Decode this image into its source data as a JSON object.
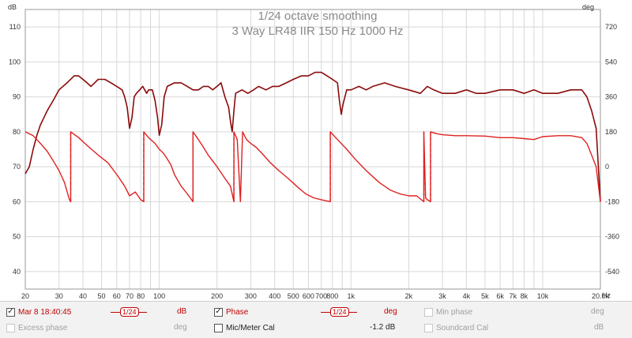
{
  "chart_data": {
    "type": "line",
    "title": "1/24 octave smoothing",
    "subtitle": "3 Way LR48 IIR 150 Hz 1000 Hz",
    "xscale": "log",
    "xlim": [
      20,
      20000
    ],
    "x_ticks": [
      {
        "v": 20,
        "label": "20"
      },
      {
        "v": 30,
        "label": "30"
      },
      {
        "v": 40,
        "label": "40"
      },
      {
        "v": 50,
        "label": "50"
      },
      {
        "v": 60,
        "label": "60"
      },
      {
        "v": 70,
        "label": "70"
      },
      {
        "v": 80,
        "label": "80"
      },
      {
        "v": 100,
        "label": "100"
      },
      {
        "v": 200,
        "label": "200"
      },
      {
        "v": 300,
        "label": "300"
      },
      {
        "v": 400,
        "label": "400"
      },
      {
        "v": 500,
        "label": "500"
      },
      {
        "v": 600,
        "label": "600"
      },
      {
        "v": 700,
        "label": "700"
      },
      {
        "v": 800,
        "label": "800"
      },
      {
        "v": 1000,
        "label": "1k"
      },
      {
        "v": 2000,
        "label": "2k"
      },
      {
        "v": 3000,
        "label": "3k"
      },
      {
        "v": 4000,
        "label": "4k"
      },
      {
        "v": 5000,
        "label": "5k"
      },
      {
        "v": 6000,
        "label": "6k"
      },
      {
        "v": 7000,
        "label": "7k"
      },
      {
        "v": 8000,
        "label": "8k"
      },
      {
        "v": 10000,
        "label": "10k"
      },
      {
        "v": 20000,
        "label": "20.0k"
      }
    ],
    "x_unit": "Hz",
    "left_axis": {
      "unit": "dB",
      "ylim": [
        35,
        115
      ],
      "ticks": [
        40,
        50,
        60,
        70,
        80,
        90,
        100,
        110
      ]
    },
    "right_axis": {
      "unit": "deg",
      "ylim": [
        -630,
        810
      ],
      "ticks": [
        -540,
        -360,
        -180,
        0,
        180,
        360,
        540,
        720
      ]
    },
    "grid": true,
    "colors": {
      "spl": "#8b0a0a",
      "phase": "#e02020",
      "grid": "#d8d8d8"
    },
    "series": [
      {
        "axis": "dB",
        "points": [
          [
            20,
            68
          ],
          [
            21,
            70
          ],
          [
            22,
            75
          ],
          [
            23,
            79
          ],
          [
            24,
            82
          ],
          [
            25,
            84
          ],
          [
            26,
            86
          ],
          [
            28,
            89
          ],
          [
            30,
            92
          ],
          [
            33,
            94
          ],
          [
            36,
            96
          ],
          [
            38,
            96
          ],
          [
            40,
            95
          ],
          [
            42,
            94
          ],
          [
            44,
            93
          ],
          [
            46,
            94
          ],
          [
            48,
            95
          ],
          [
            52,
            95
          ],
          [
            56,
            94
          ],
          [
            60,
            93
          ],
          [
            64,
            92
          ],
          [
            66,
            90
          ],
          [
            68,
            87
          ],
          [
            70,
            81
          ],
          [
            72,
            84
          ],
          [
            74,
            90
          ],
          [
            76,
            91
          ],
          [
            79,
            92
          ],
          [
            82,
            93
          ],
          [
            84,
            92
          ],
          [
            86,
            91
          ],
          [
            88,
            92
          ],
          [
            92,
            92
          ],
          [
            95,
            89
          ],
          [
            98,
            84
          ],
          [
            100,
            79
          ],
          [
            103,
            82
          ],
          [
            106,
            90
          ],
          [
            110,
            93
          ],
          [
            120,
            94
          ],
          [
            130,
            94
          ],
          [
            140,
            93
          ],
          [
            150,
            92
          ],
          [
            160,
            92
          ],
          [
            170,
            93
          ],
          [
            180,
            93
          ],
          [
            190,
            92
          ],
          [
            200,
            93
          ],
          [
            210,
            94
          ],
          [
            220,
            90
          ],
          [
            230,
            87
          ],
          [
            235,
            83
          ],
          [
            240,
            80
          ],
          [
            245,
            86
          ],
          [
            250,
            91
          ],
          [
            270,
            92
          ],
          [
            290,
            91
          ],
          [
            310,
            92
          ],
          [
            330,
            93
          ],
          [
            360,
            92
          ],
          [
            390,
            93
          ],
          [
            420,
            93
          ],
          [
            460,
            94
          ],
          [
            500,
            95
          ],
          [
            550,
            96
          ],
          [
            600,
            96
          ],
          [
            650,
            97
          ],
          [
            700,
            97
          ],
          [
            750,
            96
          ],
          [
            800,
            95
          ],
          [
            850,
            94
          ],
          [
            870,
            89
          ],
          [
            890,
            85
          ],
          [
            910,
            88
          ],
          [
            950,
            92
          ],
          [
            1000,
            92
          ],
          [
            1100,
            93
          ],
          [
            1200,
            92
          ],
          [
            1300,
            93
          ],
          [
            1500,
            94
          ],
          [
            1700,
            93
          ],
          [
            2000,
            92
          ],
          [
            2300,
            91
          ],
          [
            2500,
            93
          ],
          [
            2700,
            92
          ],
          [
            3000,
            91
          ],
          [
            3500,
            91
          ],
          [
            4000,
            92
          ],
          [
            4500,
            91
          ],
          [
            5000,
            91
          ],
          [
            6000,
            92
          ],
          [
            7000,
            92
          ],
          [
            8000,
            91
          ],
          [
            9000,
            92
          ],
          [
            10000,
            91
          ],
          [
            12000,
            91
          ],
          [
            14000,
            92
          ],
          [
            16000,
            92
          ],
          [
            17000,
            90
          ],
          [
            18000,
            86
          ],
          [
            19000,
            81
          ],
          [
            20000,
            60
          ]
        ]
      },
      {
        "axis": "deg",
        "points": [
          [
            20,
            180
          ],
          [
            22,
            160
          ],
          [
            24,
            120
          ],
          [
            26,
            80
          ],
          [
            28,
            30
          ],
          [
            30,
            -20
          ],
          [
            32,
            -80
          ],
          [
            34,
            -170
          ],
          [
            34.5,
            -180
          ],
          [
            34.5,
            180
          ],
          [
            38,
            150
          ],
          [
            42,
            110
          ],
          [
            48,
            60
          ],
          [
            54,
            20
          ],
          [
            60,
            -40
          ],
          [
            66,
            -100
          ],
          [
            70,
            -150
          ],
          [
            75,
            -130
          ],
          [
            80,
            -170
          ],
          [
            83,
            -180
          ],
          [
            83,
            180
          ],
          [
            88,
            150
          ],
          [
            95,
            120
          ],
          [
            100,
            90
          ],
          [
            105,
            70
          ],
          [
            110,
            40
          ],
          [
            115,
            10
          ],
          [
            120,
            -40
          ],
          [
            130,
            -100
          ],
          [
            140,
            -140
          ],
          [
            150,
            -180
          ],
          [
            150,
            180
          ],
          [
            160,
            140
          ],
          [
            170,
            100
          ],
          [
            180,
            60
          ],
          [
            200,
            0
          ],
          [
            220,
            -60
          ],
          [
            235,
            -100
          ],
          [
            245,
            -180
          ],
          [
            245,
            180
          ],
          [
            255,
            140
          ],
          [
            265,
            -180
          ],
          [
            272,
            180
          ],
          [
            285,
            140
          ],
          [
            300,
            120
          ],
          [
            320,
            100
          ],
          [
            350,
            60
          ],
          [
            380,
            20
          ],
          [
            420,
            -20
          ],
          [
            470,
            -60
          ],
          [
            520,
            -100
          ],
          [
            580,
            -140
          ],
          [
            640,
            -160
          ],
          [
            700,
            -170
          ],
          [
            780,
            -180
          ],
          [
            780,
            180
          ],
          [
            850,
            140
          ],
          [
            950,
            90
          ],
          [
            1050,
            40
          ],
          [
            1200,
            -20
          ],
          [
            1400,
            -80
          ],
          [
            1600,
            -120
          ],
          [
            1800,
            -140
          ],
          [
            2000,
            -150
          ],
          [
            2200,
            -150
          ],
          [
            2400,
            -180
          ],
          [
            2400,
            180
          ],
          [
            2450,
            -160
          ],
          [
            2500,
            -170
          ],
          [
            2600,
            -180
          ],
          [
            2600,
            180
          ],
          [
            2800,
            170
          ],
          [
            3000,
            165
          ],
          [
            3500,
            160
          ],
          [
            4000,
            160
          ],
          [
            5000,
            158
          ],
          [
            6000,
            150
          ],
          [
            7000,
            150
          ],
          [
            8000,
            145
          ],
          [
            9000,
            140
          ],
          [
            10000,
            155
          ],
          [
            12000,
            160
          ],
          [
            14000,
            160
          ],
          [
            16000,
            150
          ],
          [
            17000,
            120
          ],
          [
            18000,
            60
          ],
          [
            19000,
            0
          ],
          [
            20000,
            -180
          ]
        ]
      }
    ]
  },
  "legend": {
    "row1": {
      "measurement_label": "Mar 8 18:40:45",
      "spl_smoothing": "1/24",
      "spl_unit": "dB",
      "phase_label": "Phase",
      "phase_smoothing": "1/24",
      "phase_unit": "deg",
      "min_phase_label": "Min phase",
      "min_phase_unit": "deg"
    },
    "row2": {
      "excess_phase_label": "Excess phase",
      "excess_phase_unit": "deg",
      "mic_cal_label": "Mic/Meter Cal",
      "mic_cal_value": "-1.2 dB",
      "soundcard_cal_label": "Soundcard Cal",
      "soundcard_cal_unit": "dB"
    },
    "check_mark": "✓"
  }
}
